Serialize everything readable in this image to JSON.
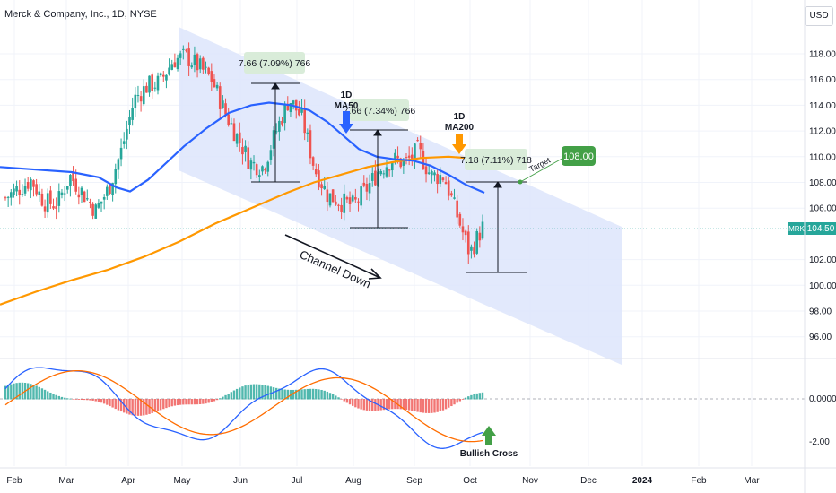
{
  "chart_data": [
    {
      "type": "candlestick",
      "title": "Merck & Company, Inc., 1D, NYSE",
      "currency": "USD",
      "symbol": "MRK",
      "last_price": "104.50",
      "y_ticks": [
        "118.00",
        "116.00",
        "114.00",
        "112.00",
        "110.00",
        "108.00",
        "106.00",
        "102.00",
        "100.00",
        "98.00",
        "96.00"
      ],
      "y_range": [
        94,
        121
      ],
      "x_ticks": [
        "Feb",
        "Mar",
        "Apr",
        "May",
        "Jun",
        "Jul",
        "Aug",
        "Sep",
        "Oct",
        "Nov",
        "Dec",
        "2024",
        "Feb",
        "Mar"
      ],
      "ohlc_close_approx": [
        {
          "date": "2023-01-26",
          "close": 106.8
        },
        {
          "date": "2023-02-01",
          "close": 107.5
        },
        {
          "date": "2023-02-08",
          "close": 108.2
        },
        {
          "date": "2023-02-15",
          "close": 106.5
        },
        {
          "date": "2023-02-22",
          "close": 106.3
        },
        {
          "date": "2023-03-01",
          "close": 108.5
        },
        {
          "date": "2023-03-08",
          "close": 107.2
        },
        {
          "date": "2023-03-15",
          "close": 105.8
        },
        {
          "date": "2023-03-22",
          "close": 107.5
        },
        {
          "date": "2023-03-29",
          "close": 110.5
        },
        {
          "date": "2023-04-05",
          "close": 114.5
        },
        {
          "date": "2023-04-12",
          "close": 115.5
        },
        {
          "date": "2023-04-19",
          "close": 115.8
        },
        {
          "date": "2023-04-26",
          "close": 117.5
        },
        {
          "date": "2023-05-03",
          "close": 117.8
        },
        {
          "date": "2023-05-10",
          "close": 117.0
        },
        {
          "date": "2023-05-17",
          "close": 116.0
        },
        {
          "date": "2023-05-24",
          "close": 113.5
        },
        {
          "date": "2023-05-31",
          "close": 111.5
        },
        {
          "date": "2023-06-07",
          "close": 109.5
        },
        {
          "date": "2023-06-14",
          "close": 109.2
        },
        {
          "date": "2023-06-21",
          "close": 112.0
        },
        {
          "date": "2023-06-28",
          "close": 114.5
        },
        {
          "date": "2023-07-05",
          "close": 113.0
        },
        {
          "date": "2023-07-12",
          "close": 109.0
        },
        {
          "date": "2023-07-19",
          "close": 107.0
        },
        {
          "date": "2023-07-26",
          "close": 106.5
        },
        {
          "date": "2023-08-02",
          "close": 106.2
        },
        {
          "date": "2023-08-09",
          "close": 107.5
        },
        {
          "date": "2023-08-16",
          "close": 109.0
        },
        {
          "date": "2023-08-23",
          "close": 109.8
        },
        {
          "date": "2023-08-30",
          "close": 109.5
        },
        {
          "date": "2023-09-06",
          "close": 110.5
        },
        {
          "date": "2023-09-13",
          "close": 108.5
        },
        {
          "date": "2023-09-20",
          "close": 108.5
        },
        {
          "date": "2023-09-27",
          "close": 105.5
        },
        {
          "date": "2023-10-02",
          "close": 102.5
        },
        {
          "date": "2023-10-06",
          "close": 104.5
        }
      ],
      "series": [
        {
          "name": "MA50",
          "color": "#2962ff"
        },
        {
          "name": "MA200",
          "color": "#ff9800"
        }
      ],
      "annotations": {
        "channel_label": "Channel Down",
        "ma50_label_1": "1D",
        "ma50_label_2": "MA50",
        "ma200_label_1": "1D",
        "ma200_label_2": "MA200",
        "measure_1": "7.66 (7.09%) 766",
        "measure_2": "7.66 (7.34%) 766",
        "measure_3": "7.18 (7.11%) 718",
        "target_word": "Target",
        "target_value": "108.00"
      }
    },
    {
      "type": "macd",
      "y_ticks": [
        "0.0000",
        "-2.00"
      ],
      "y_range": [
        -3,
        3.5
      ],
      "annotation": "Bullish Cross",
      "colors": {
        "macd": "#2962ff",
        "signal": "#ff6d00",
        "hist_pos": "#26a69a",
        "hist_neg": "#ef5350"
      }
    }
  ],
  "colors": {
    "up": "#26a69a",
    "down": "#ef5350",
    "channel_fill": "#dde5fb",
    "target_green": "#43a047",
    "label_bg": "#d9ecd9"
  }
}
